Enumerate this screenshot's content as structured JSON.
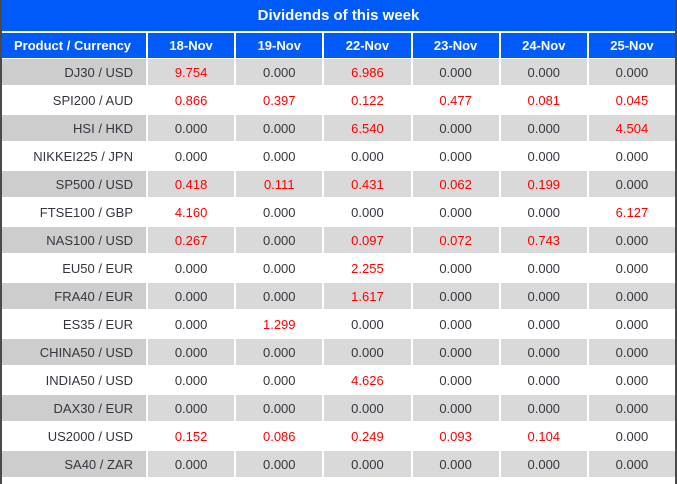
{
  "title": "Dividends of this week",
  "colors": {
    "header_bg": "#005bfa",
    "header_text": "#ffffff",
    "row_alt_value_bg": "#d9d9d9",
    "row_alt_label_bg": "#cdcdcd",
    "row_bg": "#ffffff",
    "value_text": "#35353f",
    "value_highlight": "#fe0000",
    "side_border": "#4a4a4a"
  },
  "chart_data": {
    "type": "table",
    "title": "Dividends of this week",
    "label_header": "Product / Currency",
    "date_headers": [
      "18-Nov",
      "19-Nov",
      "22-Nov",
      "23-Nov",
      "24-Nov",
      "25-Nov"
    ],
    "rows": [
      {
        "product": "DJ30 / USD",
        "values": [
          "9.754",
          "0.000",
          "6.986",
          "0.000",
          "0.000",
          "0.000"
        ],
        "red": [
          true,
          false,
          true,
          false,
          false,
          false
        ]
      },
      {
        "product": "SPI200 / AUD",
        "values": [
          "0.866",
          "0.397",
          "0.122",
          "0.477",
          "0.081",
          "0.045"
        ],
        "red": [
          true,
          true,
          true,
          true,
          true,
          true
        ]
      },
      {
        "product": "HSI / HKD",
        "values": [
          "0.000",
          "0.000",
          "6.540",
          "0.000",
          "0.000",
          "4.504"
        ],
        "red": [
          false,
          false,
          true,
          false,
          false,
          true
        ]
      },
      {
        "product": "NIKKEI225 / JPN",
        "values": [
          "0.000",
          "0.000",
          "0.000",
          "0.000",
          "0.000",
          "0.000"
        ],
        "red": [
          false,
          false,
          false,
          false,
          false,
          false
        ]
      },
      {
        "product": "SP500 / USD",
        "values": [
          "0.418",
          "0.111",
          "0.431",
          "0.062",
          "0.199",
          "0.000"
        ],
        "red": [
          true,
          true,
          true,
          true,
          true,
          false
        ]
      },
      {
        "product": "FTSE100 / GBP",
        "values": [
          "4.160",
          "0.000",
          "0.000",
          "0.000",
          "0.000",
          "6.127"
        ],
        "red": [
          true,
          false,
          false,
          false,
          false,
          true
        ]
      },
      {
        "product": "NAS100 / USD",
        "values": [
          "0.267",
          "0.000",
          "0.097",
          "0.072",
          "0.743",
          "0.000"
        ],
        "red": [
          true,
          false,
          true,
          true,
          true,
          false
        ]
      },
      {
        "product": "EU50 / EUR",
        "values": [
          "0.000",
          "0.000",
          "2.255",
          "0.000",
          "0.000",
          "0.000"
        ],
        "red": [
          false,
          false,
          true,
          false,
          false,
          false
        ]
      },
      {
        "product": "FRA40 / EUR",
        "values": [
          "0.000",
          "0.000",
          "1.617",
          "0.000",
          "0.000",
          "0.000"
        ],
        "red": [
          false,
          false,
          true,
          false,
          false,
          false
        ]
      },
      {
        "product": "ES35 / EUR",
        "values": [
          "0.000",
          "1.299",
          "0.000",
          "0.000",
          "0.000",
          "0.000"
        ],
        "red": [
          false,
          true,
          false,
          false,
          false,
          false
        ]
      },
      {
        "product": "CHINA50 / USD",
        "values": [
          "0.000",
          "0.000",
          "0.000",
          "0.000",
          "0.000",
          "0.000"
        ],
        "red": [
          false,
          false,
          false,
          false,
          false,
          false
        ]
      },
      {
        "product": "INDIA50 / USD",
        "values": [
          "0.000",
          "0.000",
          "4.626",
          "0.000",
          "0.000",
          "0.000"
        ],
        "red": [
          false,
          false,
          true,
          false,
          false,
          false
        ]
      },
      {
        "product": "DAX30 / EUR",
        "values": [
          "0.000",
          "0.000",
          "0.000",
          "0.000",
          "0.000",
          "0.000"
        ],
        "red": [
          false,
          false,
          false,
          false,
          false,
          false
        ]
      },
      {
        "product": "US2000 / USD",
        "values": [
          "0.152",
          "0.086",
          "0.249",
          "0.093",
          "0.104",
          "0.000"
        ],
        "red": [
          true,
          true,
          true,
          true,
          true,
          false
        ]
      },
      {
        "product": "SA40 / ZAR",
        "values": [
          "0.000",
          "0.000",
          "0.000",
          "0.000",
          "0.000",
          "0.000"
        ],
        "red": [
          false,
          false,
          false,
          false,
          false,
          false
        ]
      }
    ]
  }
}
